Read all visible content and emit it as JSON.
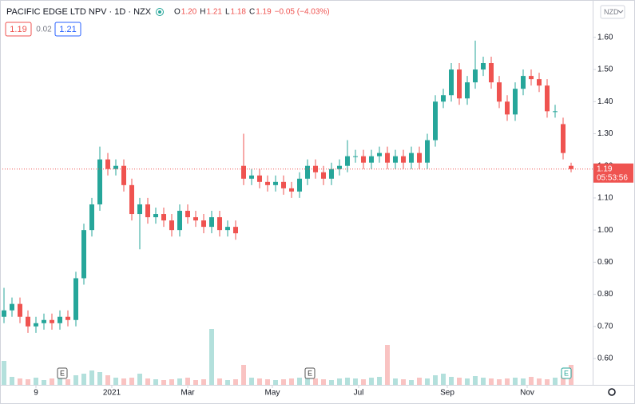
{
  "header": {
    "symbol": "PACIFIC EDGE LTD NPV · 1D · NZX",
    "ohlc": [
      {
        "key": "O",
        "value": "1.20"
      },
      {
        "key": "H",
        "value": "1.21"
      },
      {
        "key": "L",
        "value": "1.18"
      },
      {
        "key": "C",
        "value": "1.19"
      }
    ],
    "change": "−0.05 (−4.03%)",
    "bid": "1.19",
    "spread": "0.02",
    "ask": "1.21",
    "currency": "NZD"
  },
  "last_price": {
    "price": "1.19",
    "countdown": "05:53:56"
  },
  "events": [
    "E",
    "E",
    "E"
  ],
  "chart_data": {
    "type": "candlestick",
    "up_color": "#26a69a",
    "down_color": "#ef5350",
    "x": [
      0,
      1,
      2,
      3,
      4,
      5,
      6,
      7,
      8,
      9,
      10,
      11,
      12,
      13,
      14,
      15,
      16,
      17,
      18,
      19,
      20,
      21,
      22,
      23,
      24,
      25,
      26,
      27,
      28,
      29,
      30,
      31,
      32,
      33,
      34,
      35,
      36,
      37,
      38,
      39,
      40,
      41,
      42,
      43,
      44,
      45,
      46,
      47,
      48,
      49,
      50,
      51,
      52,
      53,
      54,
      55,
      56,
      57,
      58,
      59,
      60,
      61,
      62,
      63,
      64,
      65,
      66,
      67,
      68,
      69,
      70,
      71
    ],
    "open": [
      0.73,
      0.75,
      0.77,
      0.73,
      0.7,
      0.71,
      0.72,
      0.71,
      0.73,
      0.72,
      0.85,
      1.0,
      1.08,
      1.22,
      1.19,
      1.2,
      1.14,
      1.05,
      1.08,
      1.04,
      1.05,
      1.03,
      1.0,
      1.06,
      1.04,
      1.03,
      1.01,
      1.04,
      1.0,
      1.01,
      1.2,
      1.16,
      1.17,
      1.15,
      1.14,
      1.15,
      1.13,
      1.12,
      1.16,
      1.2,
      1.18,
      1.16,
      1.19,
      1.2,
      1.23,
      1.23,
      1.21,
      1.23,
      1.24,
      1.21,
      1.23,
      1.21,
      1.24,
      1.21,
      1.28,
      1.4,
      1.42,
      1.5,
      1.41,
      1.46,
      1.5,
      1.52,
      1.46,
      1.4,
      1.36,
      1.44,
      1.48,
      1.47,
      1.45,
      1.37,
      1.33,
      1.2
    ],
    "high": [
      0.82,
      0.79,
      0.79,
      0.75,
      0.73,
      0.74,
      0.74,
      0.75,
      0.75,
      0.87,
      1.02,
      1.1,
      1.26,
      1.24,
      1.22,
      1.22,
      1.16,
      1.1,
      1.1,
      1.07,
      1.07,
      1.05,
      1.08,
      1.08,
      1.06,
      1.05,
      1.06,
      1.06,
      1.03,
      1.03,
      1.3,
      1.19,
      1.19,
      1.17,
      1.17,
      1.17,
      1.15,
      1.18,
      1.22,
      1.22,
      1.2,
      1.21,
      1.22,
      1.28,
      1.25,
      1.25,
      1.25,
      1.26,
      1.26,
      1.25,
      1.25,
      1.26,
      1.26,
      1.3,
      1.42,
      1.44,
      1.52,
      1.52,
      1.48,
      1.59,
      1.54,
      1.54,
      1.48,
      1.42,
      1.46,
      1.5,
      1.5,
      1.49,
      1.47,
      1.39,
      1.35,
      1.21
    ],
    "low": [
      0.71,
      0.73,
      0.71,
      0.68,
      0.68,
      0.69,
      0.69,
      0.69,
      0.7,
      0.7,
      0.83,
      0.98,
      1.06,
      1.17,
      1.17,
      1.12,
      1.03,
      0.94,
      1.02,
      1.02,
      1.01,
      0.98,
      0.98,
      1.02,
      1.01,
      0.99,
      0.99,
      0.98,
      0.98,
      0.97,
      1.14,
      1.14,
      1.13,
      1.12,
      1.12,
      1.11,
      1.1,
      1.1,
      1.14,
      1.16,
      1.14,
      1.14,
      1.17,
      1.18,
      1.21,
      1.19,
      1.19,
      1.21,
      1.19,
      1.19,
      1.19,
      1.19,
      1.19,
      1.19,
      1.26,
      1.38,
      1.4,
      1.39,
      1.39,
      1.44,
      1.48,
      1.44,
      1.38,
      1.34,
      1.34,
      1.42,
      1.45,
      1.43,
      1.35,
      1.35,
      1.22,
      1.18
    ],
    "close": [
      0.75,
      0.77,
      0.73,
      0.7,
      0.71,
      0.72,
      0.71,
      0.73,
      0.72,
      0.85,
      1.0,
      1.08,
      1.22,
      1.19,
      1.2,
      1.14,
      1.05,
      1.08,
      1.04,
      1.05,
      1.03,
      1.0,
      1.06,
      1.04,
      1.03,
      1.01,
      1.04,
      1.0,
      1.01,
      0.99,
      1.16,
      1.17,
      1.15,
      1.14,
      1.15,
      1.13,
      1.12,
      1.16,
      1.2,
      1.18,
      1.16,
      1.19,
      1.2,
      1.23,
      1.23,
      1.21,
      1.23,
      1.24,
      1.21,
      1.23,
      1.21,
      1.24,
      1.21,
      1.28,
      1.4,
      1.42,
      1.5,
      1.41,
      1.46,
      1.5,
      1.52,
      1.46,
      1.4,
      1.36,
      1.44,
      1.48,
      1.47,
      1.45,
      1.37,
      1.37,
      1.24,
      1.19
    ],
    "volume": [
      30,
      10,
      8,
      7,
      9,
      6,
      8,
      10,
      7,
      12,
      14,
      18,
      16,
      12,
      9,
      8,
      9,
      14,
      8,
      7,
      6,
      7,
      8,
      9,
      6,
      7,
      70,
      8,
      6,
      7,
      25,
      9,
      8,
      7,
      6,
      7,
      8,
      9,
      10,
      8,
      7,
      6,
      8,
      9,
      8,
      7,
      9,
      10,
      50,
      8,
      7,
      6,
      9,
      8,
      12,
      14,
      10,
      9,
      8,
      11,
      9,
      8,
      7,
      8,
      9,
      8,
      10,
      8,
      7,
      9,
      12,
      25
    ],
    "xlim": [
      -0.2,
      73.7
    ],
    "ylim": [
      0.518,
      1.709
    ],
    "xticks": [
      {
        "value": 4,
        "label": "9"
      },
      {
        "value": 13.5,
        "label": "2021"
      },
      {
        "value": 23,
        "label": "Mar"
      },
      {
        "value": 33.6,
        "label": "May"
      },
      {
        "value": 44.4,
        "label": "Jul"
      },
      {
        "value": 55.5,
        "label": "Sep"
      },
      {
        "value": 65.5,
        "label": "Nov"
      }
    ],
    "yticks": [
      {
        "value": 0.6,
        "label": "0.60"
      },
      {
        "value": 0.7,
        "label": "0.70"
      },
      {
        "value": 0.8,
        "label": "0.80"
      },
      {
        "value": 0.9,
        "label": "0.90"
      },
      {
        "value": 1,
        "label": "1.00"
      },
      {
        "value": 1.1,
        "label": "1.10"
      },
      {
        "value": 1.2,
        "label": "1.20"
      },
      {
        "value": 1.3,
        "label": "1.30"
      },
      {
        "value": 1.4,
        "label": "1.40"
      },
      {
        "value": 1.5,
        "label": "1.50"
      },
      {
        "value": 1.6,
        "label": "1.60"
      }
    ]
  }
}
